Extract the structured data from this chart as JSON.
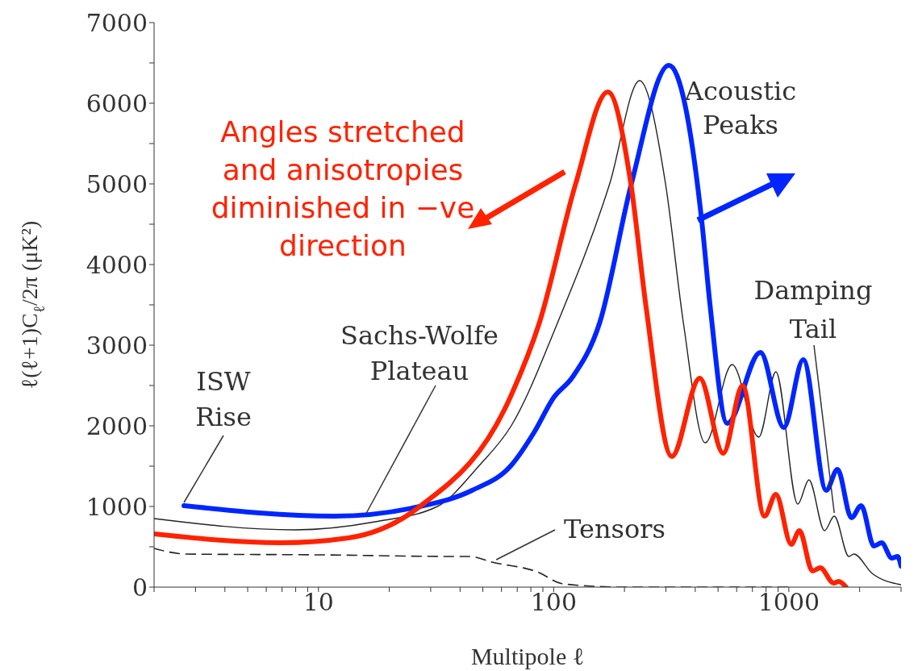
{
  "chart_data": {
    "type": "line",
    "xlabel": "Multipole ℓ",
    "ylabel": "ℓ(ℓ+1)C$_{ℓ}$/2π (μK²)",
    "log": "x",
    "xlim": [
      2,
      3000
    ],
    "ylim": [
      0,
      7000
    ],
    "xticks": [
      {
        "value": 2,
        "label": null
      },
      {
        "value": 3,
        "label": null
      },
      {
        "value": 4,
        "label": null
      },
      {
        "value": 5,
        "label": null
      },
      {
        "value": 6,
        "label": null
      },
      {
        "value": 7,
        "label": null
      },
      {
        "value": 8,
        "label": null
      },
      {
        "value": 9,
        "label": null
      },
      10,
      {
        "value": 20,
        "label": null
      },
      {
        "value": 30,
        "label": null
      },
      {
        "value": 40,
        "label": null
      },
      {
        "value": 50,
        "label": null
      },
      {
        "value": 60,
        "label": null
      },
      {
        "value": 70,
        "label": null
      },
      {
        "value": 80,
        "label": null
      },
      {
        "value": 90,
        "label": null
      },
      100,
      {
        "value": 200,
        "label": null
      },
      {
        "value": 300,
        "label": null
      },
      {
        "value": 400,
        "label": null
      },
      {
        "value": 500,
        "label": null
      },
      {
        "value": 600,
        "label": null
      },
      {
        "value": 700,
        "label": null
      },
      {
        "value": 800,
        "label": null
      },
      {
        "value": 900,
        "label": null
      },
      1000,
      {
        "value": 2000,
        "label": null
      },
      {
        "value": 3000,
        "label": null
      }
    ],
    "yticks": [
      0,
      {
        "value": 500,
        "label": null
      },
      1000,
      {
        "value": 1500,
        "label": null
      },
      2000,
      {
        "value": 2500,
        "label": null
      },
      3000,
      {
        "value": 3500,
        "label": null
      },
      4000,
      {
        "value": 4500,
        "label": null
      },
      5000,
      {
        "value": 5500,
        "label": null
      },
      6000,
      {
        "value": 6500,
        "label": null
      },
      7000
    ],
    "marker": "none",
    "series": [
      {
        "color": "#222222",
        "line_style": "dashed",
        "x": [
          2,
          2.74,
          10.3,
          38.5,
          44,
          54.7,
          85,
          110,
          200,
          510,
          1000
        ],
        "values": [
          480,
          410,
          400,
          380,
          380,
          310,
          190,
          40,
          0,
          0,
          0
        ]
      },
      {
        "color": "#222222",
        "line_style": "solid",
        "x": [
          2,
          7.9,
          17.4,
          32,
          48,
          66,
          104,
          173,
          232,
          299,
          356,
          441,
          574,
          745,
          881,
          1091,
          1218,
          1418,
          1560,
          1800,
          1890,
          2260,
          3000
        ],
        "values": [
          850,
          710,
          810,
          1000,
          1500,
          2000,
          3280,
          5000,
          6280,
          5000,
          3280,
          1790,
          2760,
          1860,
          2670,
          1030,
          1330,
          700,
          880,
          380,
          410,
          170,
          30
        ]
      },
      {
        "color": "#0026ff",
        "line_style": "solid",
        "x": [
          2.68,
          11.7,
          27,
          45,
          66,
          83,
          100,
          120,
          157,
          214,
          309,
          427,
          463,
          547,
          757,
          952,
          1152,
          1442,
          1610,
          1845,
          2030,
          2300,
          2480,
          2740,
          2900,
          3000
        ],
        "values": [
          1010,
          880,
          1000,
          1200,
          1510,
          1930,
          2350,
          2600,
          3280,
          5000,
          6470,
          4520,
          3480,
          2030,
          2910,
          1980,
          2820,
          1200,
          1460,
          860,
          1010,
          510,
          550,
          360,
          380,
          260
        ]
      },
      {
        "color": "#ff2200",
        "line_style": "solid",
        "x": [
          2,
          6.9,
          13.4,
          27,
          66,
          87,
          124,
          170,
          213,
          247,
          318,
          418,
          526,
          636,
          788,
          881,
          1024,
          1109,
          1260,
          1360,
          1550,
          1630,
          1750
        ],
        "values": [
          660,
          550,
          610,
          1000,
          2380,
          3280,
          5000,
          6140,
          5000,
          3480,
          1620,
          2590,
          1660,
          2500,
          880,
          1150,
          530,
          700,
          200,
          240,
          50,
          70,
          0
        ]
      }
    ],
    "annotations": [
      "Angles stretched and anisotropies diminished in −ve direction",
      "Acoustic Peaks",
      {
        "text": "Damping Tail",
        "x": 1560,
        "y": 880
      },
      {
        "text": "Sachs-Wolfe Plateau",
        "x": 16,
        "y": 880
      },
      {
        "text": "ISW Rise",
        "x": 2.68,
        "y": 1010
      },
      {
        "text": "Tensors",
        "x": 57,
        "y": 300
      }
    ]
  }
}
